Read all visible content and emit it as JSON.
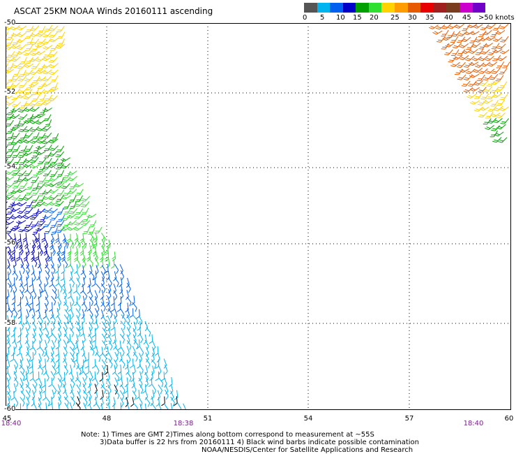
{
  "title": "ASCAT 25KM NOAA Winds 20160111 ascending",
  "legend": {
    "colors": [
      "#555555",
      "#00b4f0",
      "#0060f0",
      "#0000c8",
      "#00a000",
      "#30e030",
      "#ffd200",
      "#ff9c00",
      "#e85a00",
      "#e80000",
      "#a02020",
      "#7a3c1e",
      "#cc00cc",
      "#7000c8"
    ],
    "labels": [
      "0",
      "5",
      "10",
      "15",
      "20",
      "25",
      "30",
      "35",
      "40",
      "45",
      ">50 knots"
    ]
  },
  "map": {
    "lon_range": [
      45,
      60
    ],
    "lat_range": [
      -50,
      -60
    ],
    "x_ticks": [
      "45",
      "48",
      "51",
      "54",
      "57",
      "60"
    ],
    "y_ticks": [
      "-50",
      "-52",
      "-54",
      "-56",
      "-58",
      "-60"
    ],
    "pass_times": [
      "18:40",
      "18:38",
      "18:40"
    ]
  },
  "notes": {
    "line1": "Note: 1) Times are GMT 2)Times along bottom correspond to measurement at ~55S",
    "line2": "3)Data buffer is 22 hrs from 20160111 4) Black wind barbs indicate possible contamination",
    "line3": "NOAA/NESDIS/Center for Satellite Applications and Research"
  }
}
